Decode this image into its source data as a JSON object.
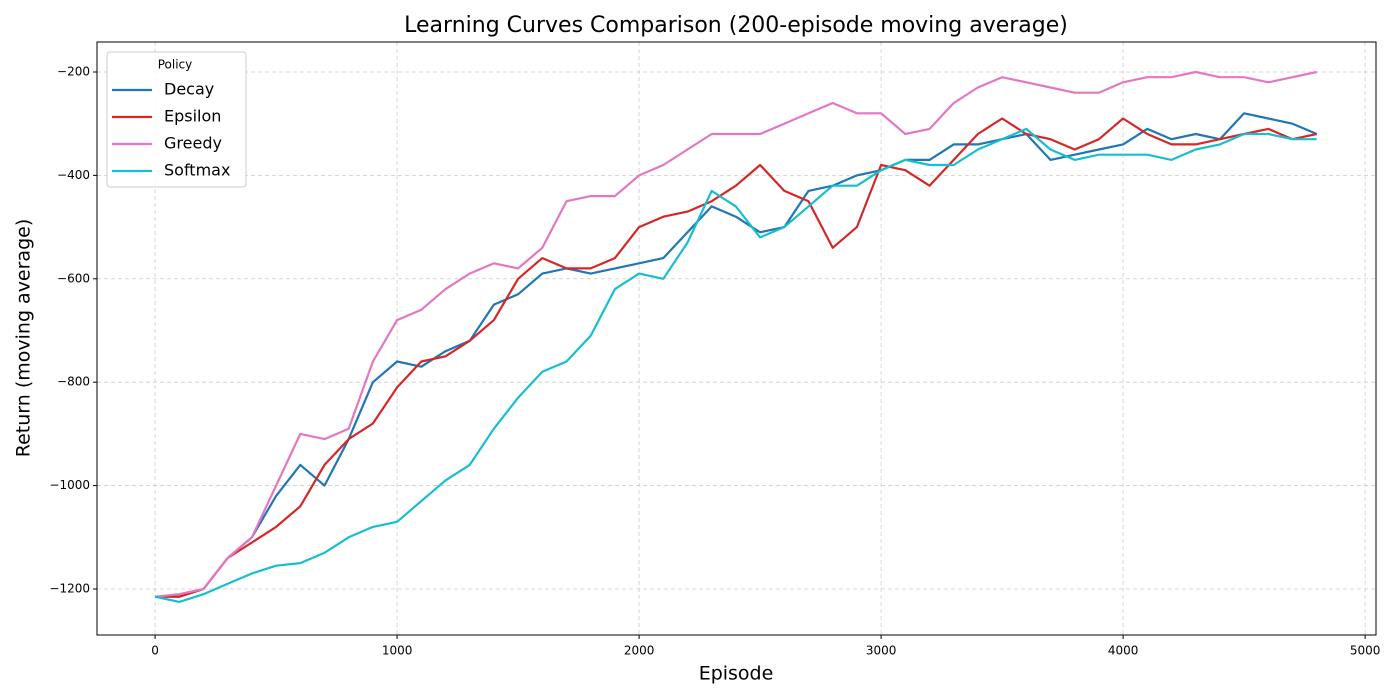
{
  "chart_data": {
    "type": "line",
    "title": "Learning Curves Comparison (200-episode moving average)",
    "x_label": "Episode",
    "y_label": "Return (moving average)",
    "legend_title": "Policy",
    "legend_position": "upper left",
    "grid": true,
    "x": [
      0,
      100,
      200,
      300,
      400,
      500,
      600,
      700,
      800,
      900,
      1000,
      1100,
      1200,
      1300,
      1400,
      1500,
      1600,
      1700,
      1800,
      1900,
      2000,
      2100,
      2200,
      2300,
      2400,
      2500,
      2600,
      2700,
      2800,
      2900,
      3000,
      3100,
      3200,
      3300,
      3400,
      3500,
      3600,
      3700,
      3800,
      3900,
      4000,
      4100,
      4200,
      4300,
      4400,
      4500,
      4600,
      4700,
      4800
    ],
    "series": [
      {
        "name": "Decay",
        "color": "#1f77b4",
        "values": [
          -1215,
          -1215,
          -1200,
          -1140,
          -1100,
          -1020,
          -960,
          -1000,
          -910,
          -800,
          -760,
          -770,
          -740,
          -720,
          -650,
          -630,
          -590,
          -580,
          -590,
          -580,
          -570,
          -560,
          -510,
          -460,
          -480,
          -510,
          -500,
          -430,
          -420,
          -400,
          -390,
          -370,
          -370,
          -340,
          -340,
          -330,
          -320,
          -370,
          -360,
          -350,
          -340,
          -310,
          -330,
          -320,
          -330,
          -280,
          -290,
          -300,
          -320
        ]
      },
      {
        "name": "Epsilon",
        "color": "#d62728",
        "values": [
          -1215,
          -1215,
          -1200,
          -1140,
          -1110,
          -1080,
          -1040,
          -960,
          -910,
          -880,
          -810,
          -760,
          -750,
          -720,
          -680,
          -600,
          -560,
          -580,
          -580,
          -560,
          -500,
          -480,
          -470,
          -450,
          -420,
          -380,
          -430,
          -450,
          -540,
          -500,
          -380,
          -390,
          -420,
          -370,
          -320,
          -290,
          -320,
          -330,
          -350,
          -330,
          -290,
          -320,
          -340,
          -340,
          -330,
          -320,
          -310,
          -330,
          -320
        ]
      },
      {
        "name": "Greedy",
        "color": "#e377c2",
        "values": [
          -1215,
          -1210,
          -1200,
          -1140,
          -1100,
          -1000,
          -900,
          -910,
          -890,
          -760,
          -680,
          -660,
          -620,
          -590,
          -570,
          -580,
          -540,
          -450,
          -440,
          -440,
          -400,
          -380,
          -350,
          -320,
          -320,
          -320,
          -300,
          -280,
          -260,
          -280,
          -280,
          -320,
          -310,
          -260,
          -230,
          -210,
          -220,
          -230,
          -240,
          -240,
          -220,
          -210,
          -210,
          -200,
          -210,
          -210,
          -220,
          -210,
          -200
        ]
      },
      {
        "name": "Softmax",
        "color": "#17becf",
        "values": [
          -1215,
          -1225,
          -1210,
          -1190,
          -1170,
          -1155,
          -1150,
          -1130,
          -1100,
          -1080,
          -1070,
          -1030,
          -990,
          -960,
          -890,
          -830,
          -780,
          -760,
          -710,
          -620,
          -590,
          -600,
          -530,
          -430,
          -460,
          -520,
          -500,
          -460,
          -420,
          -420,
          -390,
          -370,
          -380,
          -380,
          -350,
          -330,
          -310,
          -350,
          -370,
          -360,
          -360,
          -360,
          -370,
          -350,
          -340,
          -320,
          -320,
          -330,
          -330
        ]
      }
    ],
    "xlim": [
      -240,
      5045
    ],
    "xticks": [
      0,
      1000,
      2000,
      3000,
      4000,
      5000
    ],
    "ylim": [
      -1289,
      -142
    ],
    "yticks": [
      {
        "value": -1200,
        "label": "−1200"
      },
      {
        "value": -1000,
        "label": "−1000"
      },
      {
        "value": -800,
        "label": "−800"
      },
      {
        "value": -600,
        "label": "−600"
      },
      {
        "value": -400,
        "label": "−400"
      },
      {
        "value": -200,
        "label": "−200"
      }
    ]
  }
}
